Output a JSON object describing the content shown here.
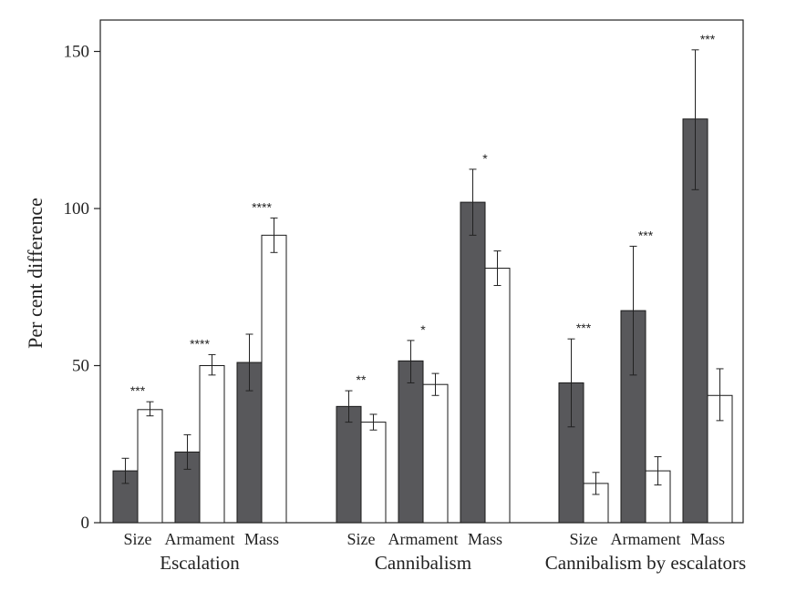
{
  "chart_data": {
    "type": "bar",
    "title": "",
    "ylabel": "Per cent difference",
    "xlabel": "",
    "ylim": [
      0,
      160
    ],
    "yticks": [
      0,
      50,
      100,
      150
    ],
    "grid": false,
    "colors": {
      "dark": "#58585b",
      "light": "#ffffff",
      "stroke": "#1a1a1a"
    },
    "groups": [
      {
        "name": "Escalation",
        "categories": [
          {
            "label": "Size",
            "dark": {
              "value": 16.5,
              "err_low": 12.5,
              "err_high": 20.5
            },
            "light": {
              "value": 36,
              "err_low": 34,
              "err_high": 38.5
            },
            "sig": "***"
          },
          {
            "label": "Armament",
            "dark": {
              "value": 22.5,
              "err_low": 17,
              "err_high": 28
            },
            "light": {
              "value": 50,
              "err_low": 47,
              "err_high": 53.5
            },
            "sig": "****"
          },
          {
            "label": "Mass",
            "dark": {
              "value": 51,
              "err_low": 42,
              "err_high": 60
            },
            "light": {
              "value": 91.5,
              "err_low": 86,
              "err_high": 97
            },
            "sig": "****"
          }
        ]
      },
      {
        "name": "Cannibalism",
        "categories": [
          {
            "label": "Size",
            "dark": {
              "value": 37,
              "err_low": 32,
              "err_high": 42
            },
            "light": {
              "value": 32,
              "err_low": 29.5,
              "err_high": 34.5
            },
            "sig": "**"
          },
          {
            "label": "Armament",
            "dark": {
              "value": 51.5,
              "err_low": 44.5,
              "err_high": 58
            },
            "light": {
              "value": 44,
              "err_low": 40.5,
              "err_high": 47.5
            },
            "sig": "*"
          },
          {
            "label": "Mass",
            "dark": {
              "value": 102,
              "err_low": 91.5,
              "err_high": 112.5
            },
            "light": {
              "value": 81,
              "err_low": 75.5,
              "err_high": 86.5
            },
            "sig": "*"
          }
        ]
      },
      {
        "name": "Cannibalism by escalators",
        "categories": [
          {
            "label": "Size",
            "dark": {
              "value": 44.5,
              "err_low": 30.5,
              "err_high": 58.5
            },
            "light": {
              "value": 12.5,
              "err_low": 9,
              "err_high": 16
            },
            "sig": "***"
          },
          {
            "label": "Armament",
            "dark": {
              "value": 67.5,
              "err_low": 47,
              "err_high": 88
            },
            "light": {
              "value": 16.5,
              "err_low": 12,
              "err_high": 21
            },
            "sig": "***"
          },
          {
            "label": "Mass",
            "dark": {
              "value": 128.5,
              "err_low": 106,
              "err_high": 150.5
            },
            "light": {
              "value": 40.5,
              "err_low": 32.5,
              "err_high": 49
            },
            "sig": "***"
          }
        ]
      }
    ]
  }
}
